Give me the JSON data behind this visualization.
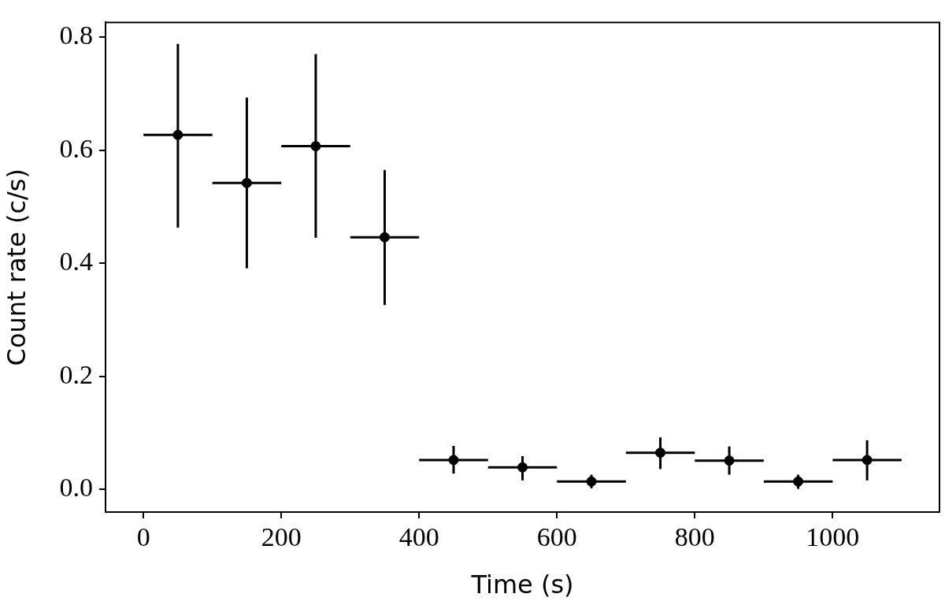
{
  "chart_data": {
    "type": "scatter",
    "xlabel": "Time (s)",
    "ylabel": "Count rate (c/s)",
    "x": [
      50,
      150,
      250,
      350,
      450,
      550,
      650,
      750,
      850,
      950,
      1050
    ],
    "series": [
      {
        "color": "#000000",
        "values": [
          0.627,
          0.542,
          0.607,
          0.446,
          0.052,
          0.039,
          0.014,
          0.065,
          0.051,
          0.014,
          0.052
        ],
        "errors": [
          [
            0.463,
            0.788
          ],
          [
            0.391,
            0.693
          ],
          [
            0.445,
            0.77
          ],
          [
            0.326,
            0.565
          ],
          [
            0.028,
            0.077
          ],
          [
            0.016,
            0.059
          ],
          [
            0.002,
            0.026
          ],
          [
            0.036,
            0.092
          ],
          [
            0.026,
            0.076
          ],
          [
            0.001,
            0.026
          ],
          [
            0.016,
            0.087
          ]
        ],
        "xerrors": [
          50,
          50,
          50,
          50,
          50,
          50,
          50,
          50,
          50,
          50,
          50
        ]
      }
    ],
    "xlim": [
      -55,
      1155
    ],
    "xticks": [
      0,
      200,
      400,
      600,
      800,
      1000
    ],
    "ylim": [
      -0.04,
      0.826
    ],
    "yticks": [
      {
        "value": 0,
        "label": "0.0"
      },
      {
        "value": 0.2,
        "label": "0.2"
      },
      {
        "value": 0.4,
        "label": "0.4"
      },
      {
        "value": 0.6,
        "label": "0.6"
      },
      {
        "value": 0.8,
        "label": "0.8"
      }
    ],
    "marker": "circle",
    "grid": false,
    "legend": false
  }
}
